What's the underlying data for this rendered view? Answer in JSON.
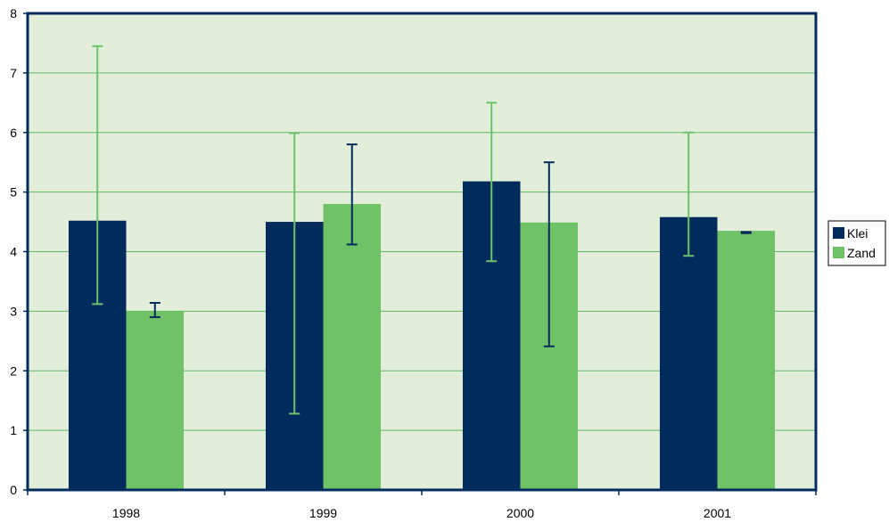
{
  "chart_data": {
    "type": "bar",
    "categories": [
      "1998",
      "1999",
      "2000",
      "2001"
    ],
    "series": [
      {
        "name": "Klei",
        "color": "#002b5c",
        "values": [
          4.52,
          4.5,
          5.18,
          4.58
        ],
        "error_low": [
          3.12,
          1.28,
          3.84,
          3.93
        ],
        "error_high": [
          7.45,
          5.99,
          6.5,
          6.0
        ],
        "error_bar_color": "#6cc36c"
      },
      {
        "name": "Zand",
        "color": "#70c267",
        "values": [
          3.0,
          4.8,
          4.49,
          4.35
        ],
        "error_low": [
          2.9,
          4.12,
          2.41,
          4.31
        ],
        "error_high": [
          3.14,
          5.8,
          5.5,
          4.33
        ],
        "error_bar_color": "#002b5c"
      }
    ],
    "ylim": [
      0,
      8
    ],
    "yticks": [
      "0",
      "1",
      "2",
      "3",
      "4",
      "5",
      "6",
      "7",
      "8"
    ],
    "grid": true,
    "legend_position": "right",
    "plot_background": "#e2eeda",
    "gridline_color": "#5fb85f",
    "axis_color": "#002b5c"
  }
}
